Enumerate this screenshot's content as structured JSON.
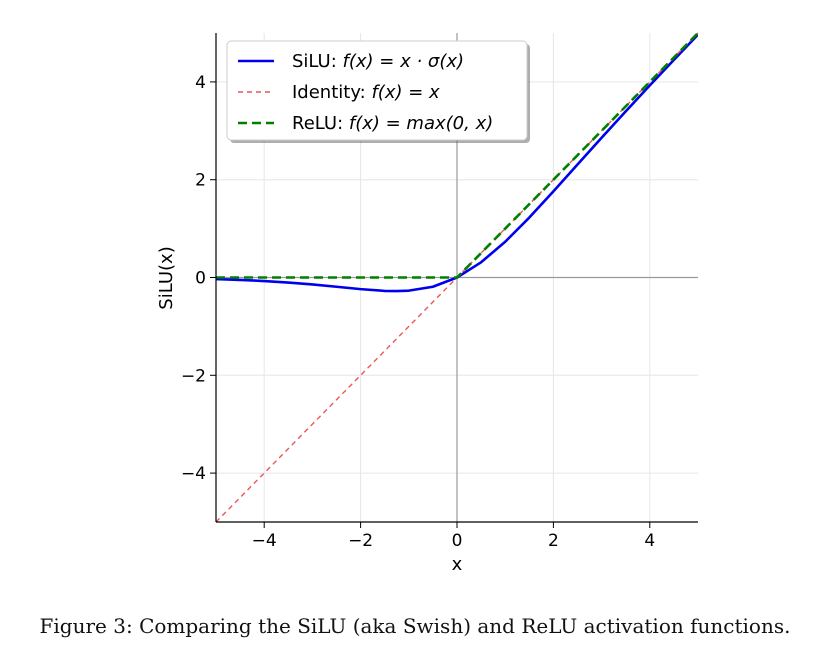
{
  "chart_data": {
    "type": "line",
    "xlabel": "x",
    "ylabel": "SiLU(x)",
    "xlim": [
      -5,
      5
    ],
    "ylim": [
      -5,
      5
    ],
    "xticks": [
      -4,
      -2,
      0,
      2,
      4
    ],
    "yticks": [
      -4,
      -2,
      0,
      2,
      4
    ],
    "xtick_labels": [
      "−4",
      "−2",
      "0",
      "2",
      "4"
    ],
    "ytick_labels": [
      "−4",
      "−2",
      "0",
      "2",
      "4"
    ],
    "grid": true,
    "legend_position": "top-left",
    "series": [
      {
        "name": "SiLU",
        "label_prefix": "SiLU: ",
        "label_math": "f(x) = x · σ(x)",
        "color": "#0000ee",
        "style": "solid",
        "x": [
          -5,
          -4.5,
          -4,
          -3.5,
          -3,
          -2.5,
          -2,
          -1.5,
          -1.25,
          -1,
          -0.5,
          0,
          0.5,
          1,
          1.5,
          2,
          2.5,
          3,
          3.5,
          4,
          4.5,
          5
        ],
        "y": [
          -0.033,
          -0.05,
          -0.072,
          -0.103,
          -0.142,
          -0.189,
          -0.238,
          -0.274,
          -0.278,
          -0.269,
          -0.189,
          0,
          0.311,
          0.731,
          1.226,
          1.762,
          2.311,
          2.858,
          3.397,
          3.928,
          4.45,
          4.967
        ]
      },
      {
        "name": "Identity",
        "label_prefix": "Identity: ",
        "label_math": "f(x) = x",
        "color": "#ee5555",
        "style": "dashed-thin",
        "x": [
          -5,
          5
        ],
        "y": [
          -5,
          5
        ]
      },
      {
        "name": "ReLU",
        "label_prefix": "ReLU: ",
        "label_math": "f(x) = max(0, x)",
        "color": "#008000",
        "style": "dashed-thick",
        "x": [
          -5,
          0,
          5
        ],
        "y": [
          0,
          0,
          5
        ]
      }
    ]
  },
  "caption": "Figure 3: Comparing the SiLU (aka Swish) and ReLU activation functions."
}
